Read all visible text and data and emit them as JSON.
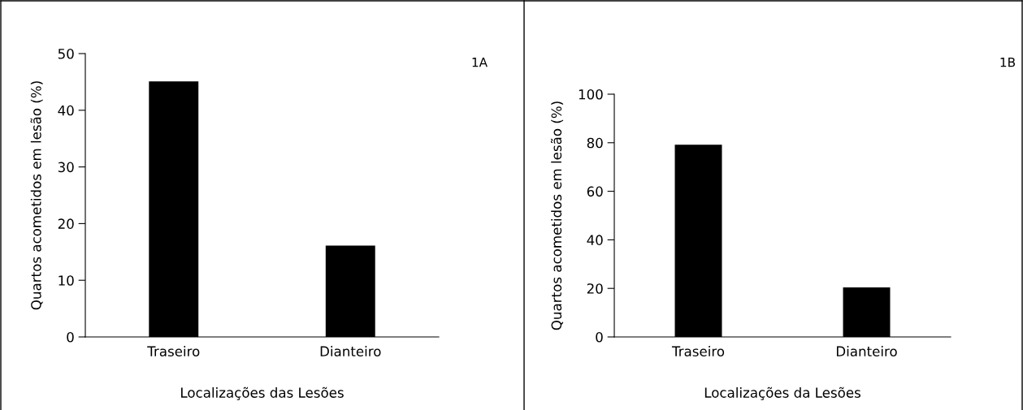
{
  "chart_data": [
    {
      "type": "bar",
      "categories": [
        "Traseiro",
        "Dianteiro"
      ],
      "values": [
        45.1,
        16.1
      ],
      "color": "#000000",
      "xlabel": "Localizações das Lesões",
      "ylabel": "Quartos acometidos em lesão (%)",
      "ylim": [
        0,
        50
      ],
      "yticks": [
        0,
        10,
        20,
        30,
        40,
        50
      ],
      "grid": false,
      "legend": false,
      "annotations": [
        "1A"
      ]
    },
    {
      "type": "bar",
      "categories": [
        "Traseiro",
        "Dianteiro"
      ],
      "values": [
        79.2,
        20.4
      ],
      "color": "#000000",
      "xlabel": "Localizações da Lesões",
      "ylabel": "Quartos acometidos em lesão (%)",
      "ylim": [
        0,
        100
      ],
      "yticks": [
        0,
        20,
        40,
        60,
        80,
        100
      ],
      "grid": false,
      "legend": false,
      "annotations": [
        "1B"
      ]
    }
  ]
}
